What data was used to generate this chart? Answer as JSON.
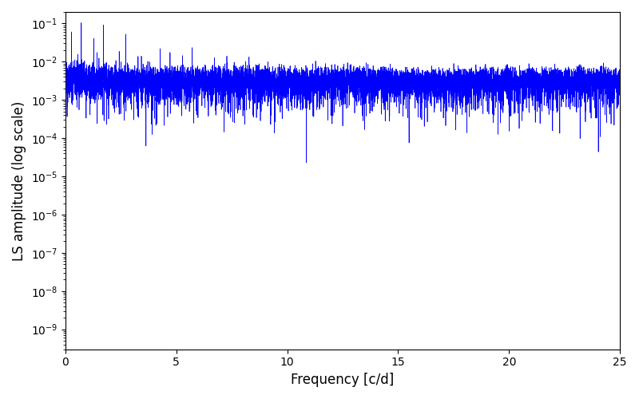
{
  "xlabel": "Frequency [c/d]",
  "ylabel": "LS amplitude (log scale)",
  "xlim": [
    0,
    25
  ],
  "ylim": [
    3e-10,
    0.2
  ],
  "line_color": "#0000ff",
  "line_width": 0.5,
  "background_color": "#ffffff",
  "figsize": [
    8.0,
    5.0
  ],
  "dpi": 100,
  "seed": 12345
}
